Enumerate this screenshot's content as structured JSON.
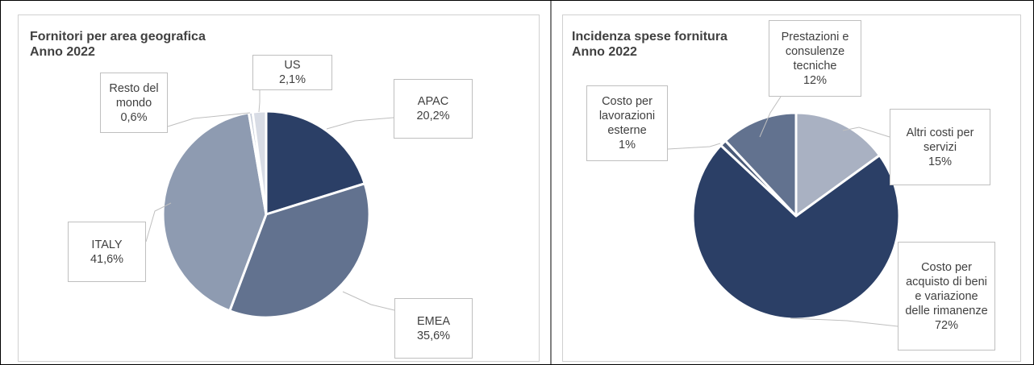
{
  "chart_data": [
    {
      "type": "pie",
      "title": "Fornitori per area geografica",
      "subtitle": "Anno 2022",
      "categories": [
        "APAC",
        "EMEA",
        "ITALY",
        "Resto del mondo",
        "US"
      ],
      "values": [
        20.2,
        35.6,
        41.6,
        0.6,
        2.1
      ],
      "value_labels": [
        "20,2%",
        "35,6%",
        "41,6%",
        "0,6%",
        "2,1%"
      ],
      "colors": [
        "#2b3f66",
        "#62728f",
        "#8e9bb1",
        "#c3cad6",
        "#d8dce5"
      ]
    },
    {
      "type": "pie",
      "title": "Incidenza spese fornitura",
      "subtitle": "Anno 2022",
      "categories": [
        "Altri costi per servizi",
        "Costo per acquisto di beni e variazione delle rimanenze",
        "Costo per lavorazioni esterne",
        "Prestazioni e consulenze tecniche"
      ],
      "values": [
        15,
        72,
        1,
        12
      ],
      "value_labels": [
        "15%",
        "72%",
        "1%",
        "12%"
      ],
      "colors": [
        "#a9b1c2",
        "#2b3f66",
        "#4a5a78",
        "#62728f"
      ]
    }
  ]
}
